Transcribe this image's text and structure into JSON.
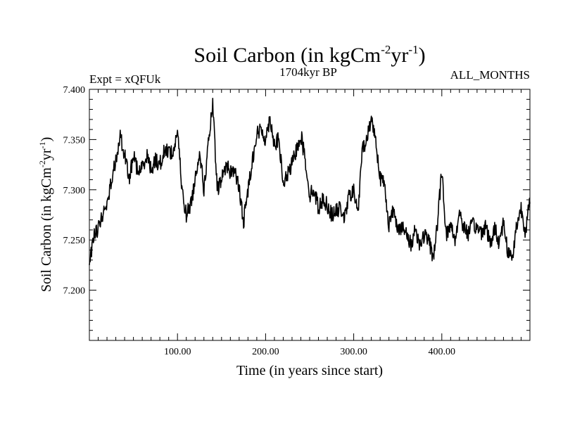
{
  "chart_data": {
    "type": "line",
    "title": {
      "base": "Soil Carbon (in kgCm",
      "sup1": "-2",
      "mid": "yr",
      "sup2": "-1",
      "close": ")"
    },
    "subtitle_left": "Expt = xQFUk",
    "subtitle_center": "1704kyr BP",
    "subtitle_right": "ALL_MONTHS",
    "xlabel": "Time (in years since start)",
    "ylabel": {
      "base": "Soil Carbon (in kgCm",
      "sup1": "-2",
      "mid": "yr",
      "sup2": "-1",
      "close": ")"
    },
    "xlim": [
      0,
      500
    ],
    "ylim": [
      7.15,
      7.4
    ],
    "xticks_major": [
      100,
      200,
      300,
      400
    ],
    "xtick_labels": [
      "100.00",
      "200.00",
      "300.00",
      "400.00"
    ],
    "yticks_major": [
      7.2,
      7.25,
      7.3,
      7.35,
      7.4
    ],
    "ytick_labels": [
      "7.200",
      "7.250",
      "7.300",
      "7.350",
      "7.400"
    ],
    "grid": false,
    "series": [
      {
        "name": "Soil Carbon",
        "color": "#000000",
        "x": [
          0,
          5,
          10,
          15,
          20,
          25,
          30,
          35,
          40,
          45,
          50,
          55,
          60,
          65,
          70,
          75,
          80,
          85,
          90,
          95,
          100,
          105,
          110,
          115,
          120,
          125,
          130,
          135,
          140,
          145,
          150,
          155,
          160,
          165,
          170,
          175,
          180,
          185,
          190,
          195,
          200,
          205,
          210,
          215,
          220,
          225,
          230,
          235,
          240,
          245,
          250,
          255,
          260,
          265,
          270,
          275,
          280,
          285,
          290,
          295,
          300,
          305,
          310,
          315,
          320,
          325,
          330,
          335,
          340,
          345,
          350,
          355,
          360,
          365,
          370,
          375,
          380,
          385,
          390,
          395,
          400,
          405,
          410,
          415,
          420,
          425,
          430,
          435,
          440,
          445,
          450,
          455,
          460,
          465,
          470,
          475,
          480,
          485,
          490,
          495,
          500
        ],
        "y": [
          7.225,
          7.255,
          7.262,
          7.275,
          7.285,
          7.31,
          7.33,
          7.355,
          7.335,
          7.31,
          7.335,
          7.318,
          7.322,
          7.335,
          7.32,
          7.33,
          7.325,
          7.338,
          7.34,
          7.335,
          7.36,
          7.3,
          7.275,
          7.285,
          7.31,
          7.34,
          7.3,
          7.345,
          7.385,
          7.3,
          7.31,
          7.325,
          7.318,
          7.32,
          7.3,
          7.268,
          7.3,
          7.33,
          7.355,
          7.36,
          7.35,
          7.372,
          7.345,
          7.35,
          7.305,
          7.315,
          7.325,
          7.34,
          7.355,
          7.33,
          7.295,
          7.3,
          7.282,
          7.29,
          7.285,
          7.275,
          7.278,
          7.282,
          7.272,
          7.295,
          7.298,
          7.278,
          7.342,
          7.35,
          7.372,
          7.35,
          7.312,
          7.305,
          7.265,
          7.28,
          7.263,
          7.262,
          7.255,
          7.245,
          7.262,
          7.245,
          7.255,
          7.25,
          7.232,
          7.265,
          7.32,
          7.255,
          7.265,
          7.25,
          7.278,
          7.262,
          7.257,
          7.265,
          7.262,
          7.258,
          7.265,
          7.245,
          7.262,
          7.248,
          7.268,
          7.238,
          7.232,
          7.265,
          7.282,
          7.258,
          7.29
        ],
        "noise": 0.008
      }
    ]
  }
}
